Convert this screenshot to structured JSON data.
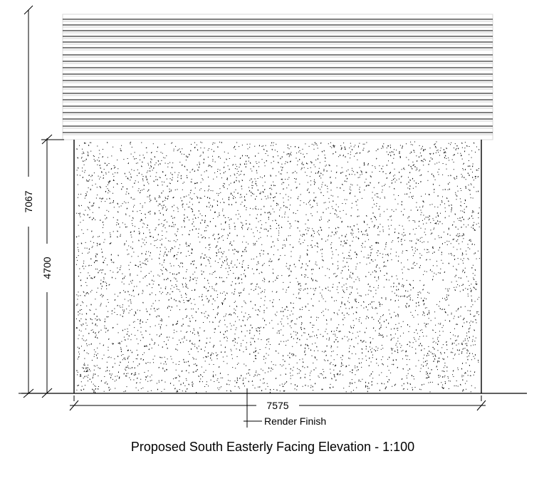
{
  "drawing": {
    "title": "Proposed South Easterly Facing Elevation - 1:100",
    "dimensions": {
      "overall_height": "7067",
      "wall_height": "4700",
      "width": "7575"
    },
    "annotations": {
      "render_finish": "Render Finish"
    },
    "materials": {
      "upper_cladding": "horizontal-boarding",
      "lower_wall": "render-stipple"
    }
  }
}
